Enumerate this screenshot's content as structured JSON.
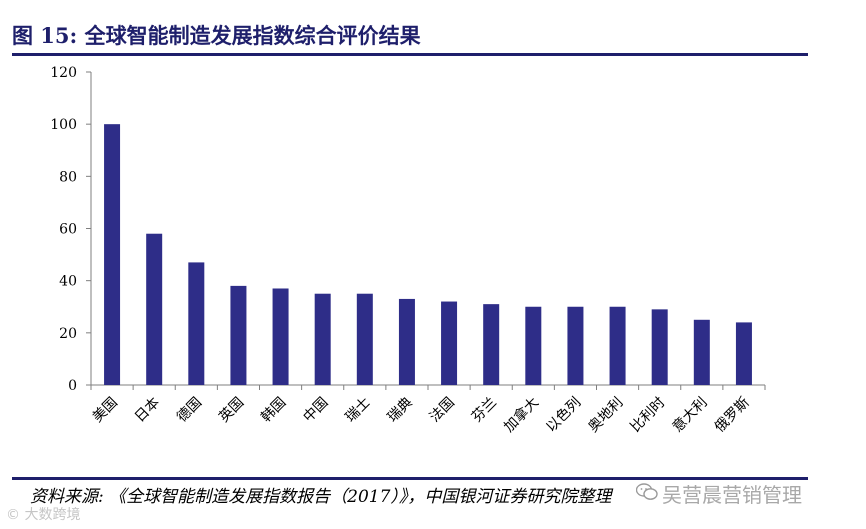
{
  "title": "图 15:  全球智能制造发展指数综合评价结果",
  "source": "资料来源:  《全球智能制造发展指数报告（2017）》，中国银河证券研究院整理",
  "watermark_right": "吴营晨营销管理",
  "watermark_left": "© 大数跨境",
  "colors": {
    "bar": "#2e2d88",
    "title": "#1e1f6b",
    "axis": "#7f7f7f"
  },
  "chart_data": {
    "type": "bar",
    "categories": [
      "美国",
      "日本",
      "德国",
      "英国",
      "韩国",
      "中国",
      "瑞士",
      "瑞典",
      "法国",
      "芬兰",
      "加拿大",
      "以色列",
      "奥地利",
      "比利时",
      "意大利",
      "俄罗斯"
    ],
    "values": [
      100,
      58,
      47,
      38,
      37,
      35,
      35,
      33,
      32,
      31,
      30,
      30,
      30,
      29,
      25,
      24
    ],
    "yticks": [
      0,
      20,
      40,
      60,
      80,
      100,
      120
    ],
    "ylim": [
      0,
      120
    ],
    "title": "全球智能制造发展指数综合评价结果",
    "xlabel": "",
    "ylabel": ""
  }
}
